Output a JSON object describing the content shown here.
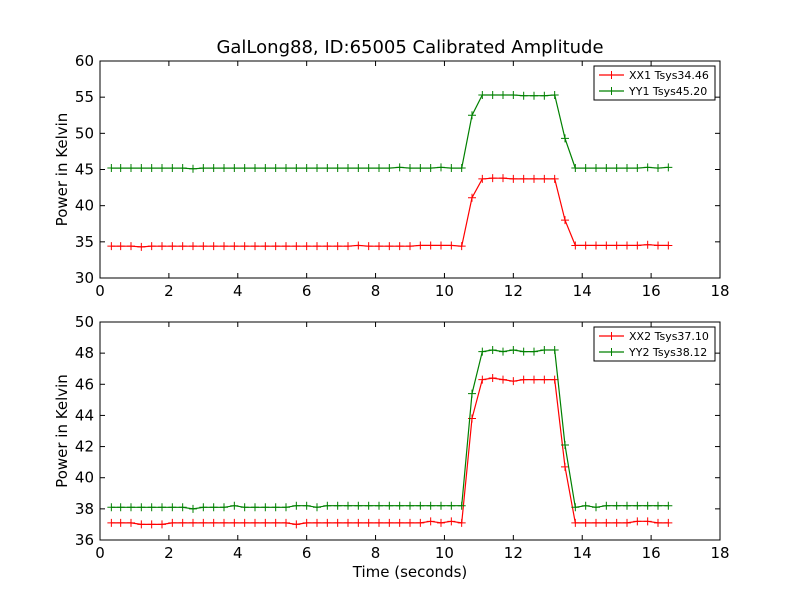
{
  "chart_data": [
    {
      "type": "line",
      "title": "GalLong88, ID:65005 Calibrated Amplitude",
      "xlabel": "",
      "ylabel": "Power in Kelvin",
      "xlim": [
        0,
        18
      ],
      "ylim": [
        30,
        60
      ],
      "xticks": [
        "0",
        "2",
        "4",
        "6",
        "8",
        "10",
        "12",
        "14",
        "16",
        "18"
      ],
      "yticks": [
        "30",
        "35",
        "40",
        "45",
        "50",
        "55",
        "60"
      ],
      "legend_position": "top-right",
      "x": [
        0.33,
        0.6,
        0.9,
        1.2,
        1.5,
        1.8,
        2.1,
        2.4,
        2.7,
        3.0,
        3.3,
        3.6,
        3.9,
        4.2,
        4.5,
        4.8,
        5.1,
        5.4,
        5.7,
        6.0,
        6.3,
        6.6,
        6.9,
        7.2,
        7.5,
        7.8,
        8.1,
        8.4,
        8.7,
        9.0,
        9.3,
        9.6,
        9.9,
        10.2,
        10.5,
        10.8,
        11.1,
        11.4,
        11.7,
        12.0,
        12.3,
        12.6,
        12.9,
        13.2,
        13.5,
        13.8,
        14.1,
        14.4,
        14.7,
        15.0,
        15.3,
        15.6,
        15.9,
        16.2,
        16.5
      ],
      "series": [
        {
          "name": "XX1 Tsys34.46",
          "color": "#ff0000",
          "values": [
            34.4,
            34.4,
            34.4,
            34.3,
            34.4,
            34.4,
            34.4,
            34.4,
            34.4,
            34.4,
            34.4,
            34.4,
            34.4,
            34.4,
            34.4,
            34.4,
            34.4,
            34.4,
            34.4,
            34.4,
            34.4,
            34.4,
            34.4,
            34.4,
            34.5,
            34.4,
            34.4,
            34.4,
            34.4,
            34.4,
            34.5,
            34.5,
            34.5,
            34.5,
            34.4,
            41.1,
            43.7,
            43.8,
            43.8,
            43.7,
            43.7,
            43.7,
            43.7,
            43.7,
            38.0,
            34.5,
            34.5,
            34.5,
            34.5,
            34.5,
            34.5,
            34.5,
            34.6,
            34.5,
            34.5
          ]
        },
        {
          "name": "YY1 Tsys45.20",
          "color": "#008000",
          "values": [
            45.2,
            45.2,
            45.2,
            45.2,
            45.2,
            45.2,
            45.2,
            45.2,
            45.1,
            45.2,
            45.2,
            45.2,
            45.2,
            45.2,
            45.2,
            45.2,
            45.2,
            45.2,
            45.2,
            45.2,
            45.2,
            45.2,
            45.2,
            45.2,
            45.2,
            45.2,
            45.2,
            45.2,
            45.3,
            45.2,
            45.2,
            45.2,
            45.3,
            45.2,
            45.2,
            52.5,
            55.3,
            55.3,
            55.3,
            55.3,
            55.2,
            55.2,
            55.2,
            55.3,
            49.3,
            45.2,
            45.2,
            45.2,
            45.2,
            45.2,
            45.2,
            45.2,
            45.3,
            45.2,
            45.3
          ]
        }
      ]
    },
    {
      "type": "line",
      "title": "",
      "xlabel": "Time (seconds)",
      "ylabel": "Power in Kelvin",
      "xlim": [
        0,
        18
      ],
      "ylim": [
        36,
        50
      ],
      "xticks": [
        "0",
        "2",
        "4",
        "6",
        "8",
        "10",
        "12",
        "14",
        "16",
        "18"
      ],
      "yticks": [
        "36",
        "38",
        "40",
        "42",
        "44",
        "46",
        "48",
        "50"
      ],
      "legend_position": "top-right",
      "x": [
        0.33,
        0.6,
        0.9,
        1.2,
        1.5,
        1.8,
        2.1,
        2.4,
        2.7,
        3.0,
        3.3,
        3.6,
        3.9,
        4.2,
        4.5,
        4.8,
        5.1,
        5.4,
        5.7,
        6.0,
        6.3,
        6.6,
        6.9,
        7.2,
        7.5,
        7.8,
        8.1,
        8.4,
        8.7,
        9.0,
        9.3,
        9.6,
        9.9,
        10.2,
        10.5,
        10.8,
        11.1,
        11.4,
        11.7,
        12.0,
        12.3,
        12.6,
        12.9,
        13.2,
        13.5,
        13.8,
        14.1,
        14.4,
        14.7,
        15.0,
        15.3,
        15.6,
        15.9,
        16.2,
        16.5
      ],
      "series": [
        {
          "name": "XX2 Tsys37.10",
          "color": "#ff0000",
          "values": [
            37.1,
            37.1,
            37.1,
            37.0,
            37.0,
            37.0,
            37.1,
            37.1,
            37.1,
            37.1,
            37.1,
            37.1,
            37.1,
            37.1,
            37.1,
            37.1,
            37.1,
            37.1,
            37.0,
            37.1,
            37.1,
            37.1,
            37.1,
            37.1,
            37.1,
            37.1,
            37.1,
            37.1,
            37.1,
            37.1,
            37.1,
            37.2,
            37.1,
            37.2,
            37.1,
            43.8,
            46.3,
            46.4,
            46.3,
            46.2,
            46.3,
            46.3,
            46.3,
            46.3,
            40.7,
            37.1,
            37.1,
            37.1,
            37.1,
            37.1,
            37.1,
            37.2,
            37.2,
            37.1,
            37.1
          ]
        },
        {
          "name": "YY2 Tsys38.12",
          "color": "#008000",
          "values": [
            38.1,
            38.1,
            38.1,
            38.1,
            38.1,
            38.1,
            38.1,
            38.1,
            38.0,
            38.1,
            38.1,
            38.1,
            38.2,
            38.1,
            38.1,
            38.1,
            38.1,
            38.1,
            38.2,
            38.2,
            38.1,
            38.2,
            38.2,
            38.2,
            38.2,
            38.2,
            38.2,
            38.2,
            38.2,
            38.2,
            38.2,
            38.2,
            38.2,
            38.2,
            38.2,
            45.4,
            48.1,
            48.2,
            48.1,
            48.2,
            48.1,
            48.1,
            48.2,
            48.2,
            42.1,
            38.1,
            38.2,
            38.1,
            38.2,
            38.2,
            38.2,
            38.2,
            38.2,
            38.2,
            38.2
          ]
        }
      ]
    }
  ]
}
